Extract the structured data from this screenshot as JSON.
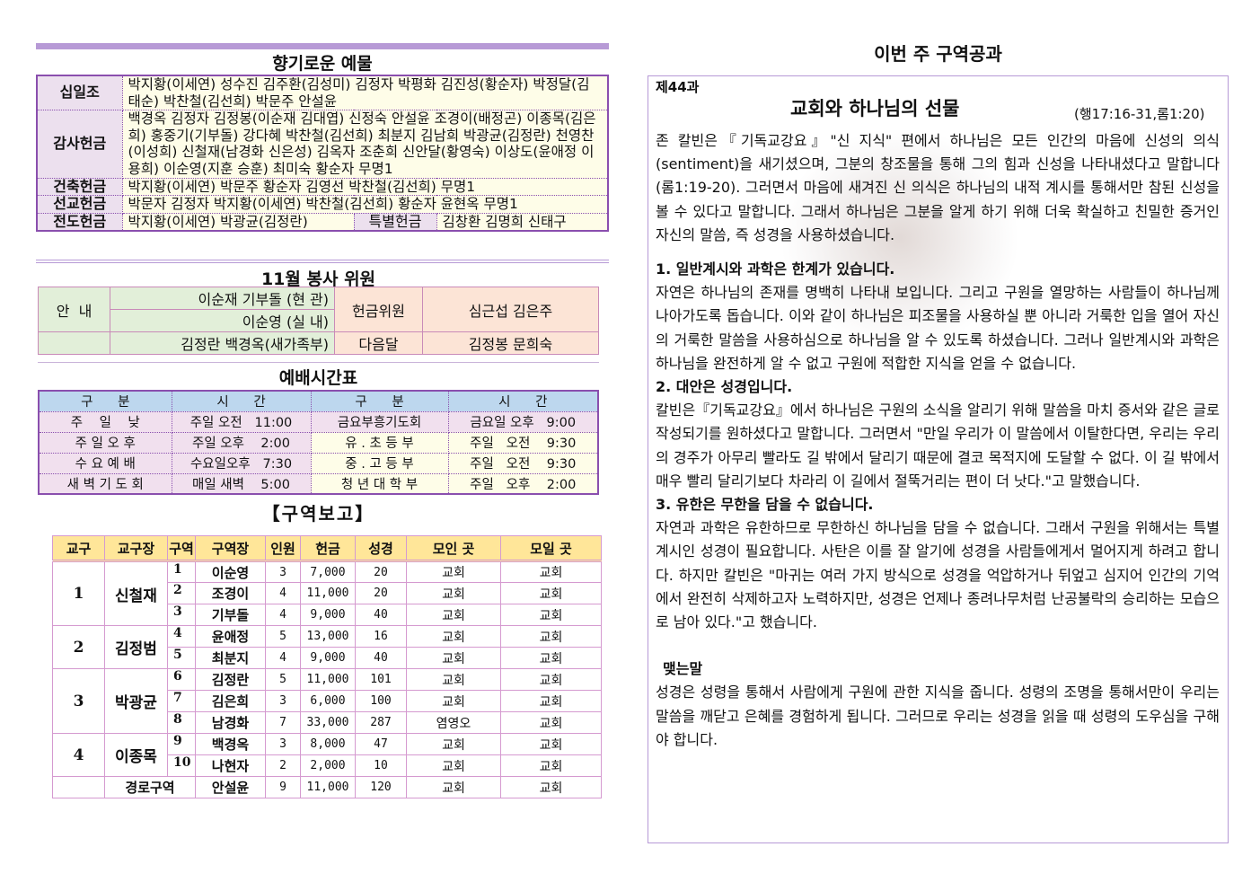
{
  "left": {
    "offering_title": "향기로운 예물",
    "offerings": [
      {
        "label": "십일조",
        "text": "박지황(이세연) 성수진 김주환(김성미) 김정자 박평화 김진성(황순자) 박정달(김태순) 박찬철(김선희) 박문주 안설윤"
      },
      {
        "label": "감사헌금",
        "text": "백경옥 김정자 김정봉(이순재 김대엽) 신정숙 안설윤 조경이(배정곤) 이종목(김은희) 홍중기(기부돌) 강다혜 박찬철(김선희) 최분지 김남희 박광균(김정란) 천영찬(이성희) 신철재(남경화 신은성) 김옥자 조춘희 신안달(황영숙) 이상도(윤애정 이용희) 이순영(지훈 승훈) 최미숙 황순자 무명1"
      },
      {
        "label": "건축헌금",
        "text": "박지황(이세연) 박문주 황순자 김영선 박찬철(김선희) 무명1"
      },
      {
        "label": "선교헌금",
        "text": "박문자 김정자 박지황(이세연) 박찬철(김선희) 황순자 윤현옥 무명1"
      },
      {
        "label": "전도헌금",
        "text": "박지황(이세연) 박광균(김정란)",
        "special_label": "특별헌금",
        "special_text": "김창환 김명희 신태구"
      }
    ],
    "committee_title": "11월 봉사 위원",
    "committee": {
      "guide_label": "안  내",
      "guide1": "이순재 기부돌 (현 관)",
      "guide2": "이순영 (실 내)",
      "guide3": "김정란 백경옥(새가족부)",
      "offering_label": "헌금위원",
      "offering_names": "심근섭 김은주",
      "next_label": "다음달",
      "next_names": "김정봉 문희숙"
    },
    "schedule_title": "예배시간표",
    "schedule": {
      "headers": [
        "구      분",
        "시      간",
        "구      분",
        "시      간"
      ],
      "rows": [
        [
          "주    일    낮",
          "주일 오전   11:00",
          "금요부흥기도회",
          "금요일 오후   9:00"
        ],
        [
          "주 일 오 후",
          "주일 오후    2:00",
          "유 . 초 등 부",
          "주일   오전    9:30"
        ],
        [
          "수 요 예 배",
          "수요일오후   7:30",
          "중 . 고 등 부",
          "주일   오전    9:30"
        ],
        [
          "새 벽 기 도 회",
          "매일 새벽    5:00",
          "청 년 대 학 부",
          "주일   오후    2:00"
        ]
      ]
    },
    "district_title": "【구역보고】",
    "district": {
      "headers": [
        "교구",
        "교구장",
        "구역",
        "구역장",
        "인원",
        "헌금",
        "성경",
        "모인 곳",
        "모일 곳"
      ],
      "groups": [
        {
          "parish": "1",
          "leader": "신철재",
          "rows": [
            [
              "1",
              "이순영",
              "3",
              "7,000",
              "20",
              "교회",
              "교회"
            ],
            [
              "2",
              "조경이",
              "4",
              "11,000",
              "20",
              "교회",
              "교회"
            ],
            [
              "3",
              "기부돌",
              "4",
              "9,000",
              "40",
              "교회",
              "교회"
            ]
          ]
        },
        {
          "parish": "2",
          "leader": "김정범",
          "rows": [
            [
              "4",
              "윤애정",
              "5",
              "13,000",
              "16",
              "교회",
              "교회"
            ],
            [
              "5",
              "최분지",
              "4",
              "9,000",
              "40",
              "교회",
              "교회"
            ]
          ]
        },
        {
          "parish": "3",
          "leader": "박광균",
          "rows": [
            [
              "6",
              "김정란",
              "5",
              "11,000",
              "101",
              "교회",
              "교회"
            ],
            [
              "7",
              "김은희",
              "3",
              "6,000",
              "100",
              "교회",
              "교회"
            ],
            [
              "8",
              "남경화",
              "7",
              "33,000",
              "287",
              "염영오",
              "교회"
            ]
          ]
        },
        {
          "parish": "4",
          "leader": "이종목",
          "rows": [
            [
              "9",
              "백경옥",
              "3",
              "8,000",
              "47",
              "교회",
              "교회"
            ],
            [
              "10",
              "나현자",
              "2",
              "2,000",
              "10",
              "교회",
              "교회"
            ]
          ]
        }
      ],
      "elder": {
        "label": "경로구역",
        "row": [
          "안설윤",
          "9",
          "11,000",
          "120",
          "교회",
          "교회"
        ]
      }
    }
  },
  "right": {
    "page_title": "이번 주 구역공과",
    "lesson_no": "제44과",
    "lesson_title": "교회와 하나님의 선물",
    "scripture": "(행17:16-31,롬1:20)",
    "intro": " 존 칼빈은『기독교강요』\"신 지식\" 편에서 하나님은 모든 인간의 마음에 신성의 의식(sentiment)을 새기셨으며, 그분의 창조물을 통해 그의 힘과 신성을 나타내셨다고 말합니다(롬1:19-20). 그러면서 마음에 새겨진 신 의식은 하나님의 내적 계시를 통해서만 참된 신성을 볼 수 있다고 말합니다. 그래서 하나님은 그분을 알게 하기 위해 더욱 확실하고 친밀한 증거인 자신의 말씀, 즉 성경을 사용하셨습니다.",
    "s1_title": "1. 일반계시와 과학은 한계가 있습니다.",
    "s1_text": " 자연은 하나님의 존재를 명백히 나타내 보입니다. 그리고 구원을 열망하는 사람들이 하나님께 나아가도록 돕습니다. 이와 같이 하나님은 피조물을 사용하실 뿐 아니라 거룩한 입을 열어 자신의 거룩한 말씀을 사용하심으로 하나님을 알 수 있도록 하셨습니다. 그러나 일반계시와 과학은 하나님을 완전하게 알 수 없고 구원에 적합한 지식을 얻을 수 없습니다.",
    "s2_title": "2. 대안은 성경입니다.",
    "s2_text": "  칼빈은『기독교강요』에서 하나님은 구원의 소식을 알리기 위해 말씀을 마치 증서와 같은 글로 작성되기를 원하셨다고 말합니다. 그러면서 \"만일 우리가 이 말씀에서 이탈한다면, 우리는 우리의 경주가 아무리 빨라도 길 밖에서 달리기 때문에 결코 목적지에 도달할 수 없다. 이 길 밖에서 매우 빨리 달리기보다 차라리 이 길에서 절뚝거리는 편이 더 낫다.\"고 말했습니다.",
    "s3_title": "3. 유한은 무한을 담을 수 없습니다.",
    "s3_text": " 자연과 과학은 유한하므로 무한하신 하나님을 담을 수 없습니다. 그래서 구원을 위해서는 특별계시인 성경이 필요합니다. 사탄은 이를 잘 알기에 성경을 사람들에게서 멀어지게 하려고 합니다. 하지만 칼빈은 \"마귀는 여러 가지 방식으로 성경을 억압하거나 뒤엎고 심지어 인간의 기억에서 완전히 삭제하고자 노력하지만, 성경은 언제나 종려나무처럼 난공불락의 승리하는 모습으로 남아 있다.\"고 했습니다.",
    "conclusion_title": "맺는말",
    "conclusion_text": " 성경은 성령을 통해서 사람에게 구원에 관한 지식을 줍니다. 성령의 조명을 통해서만이 우리는 말씀을 깨닫고 은혜를 경험하게 됩니다. 그러므로 우리는 성경을 읽을 때 성령의 도우심을 구해야 합니다."
  }
}
